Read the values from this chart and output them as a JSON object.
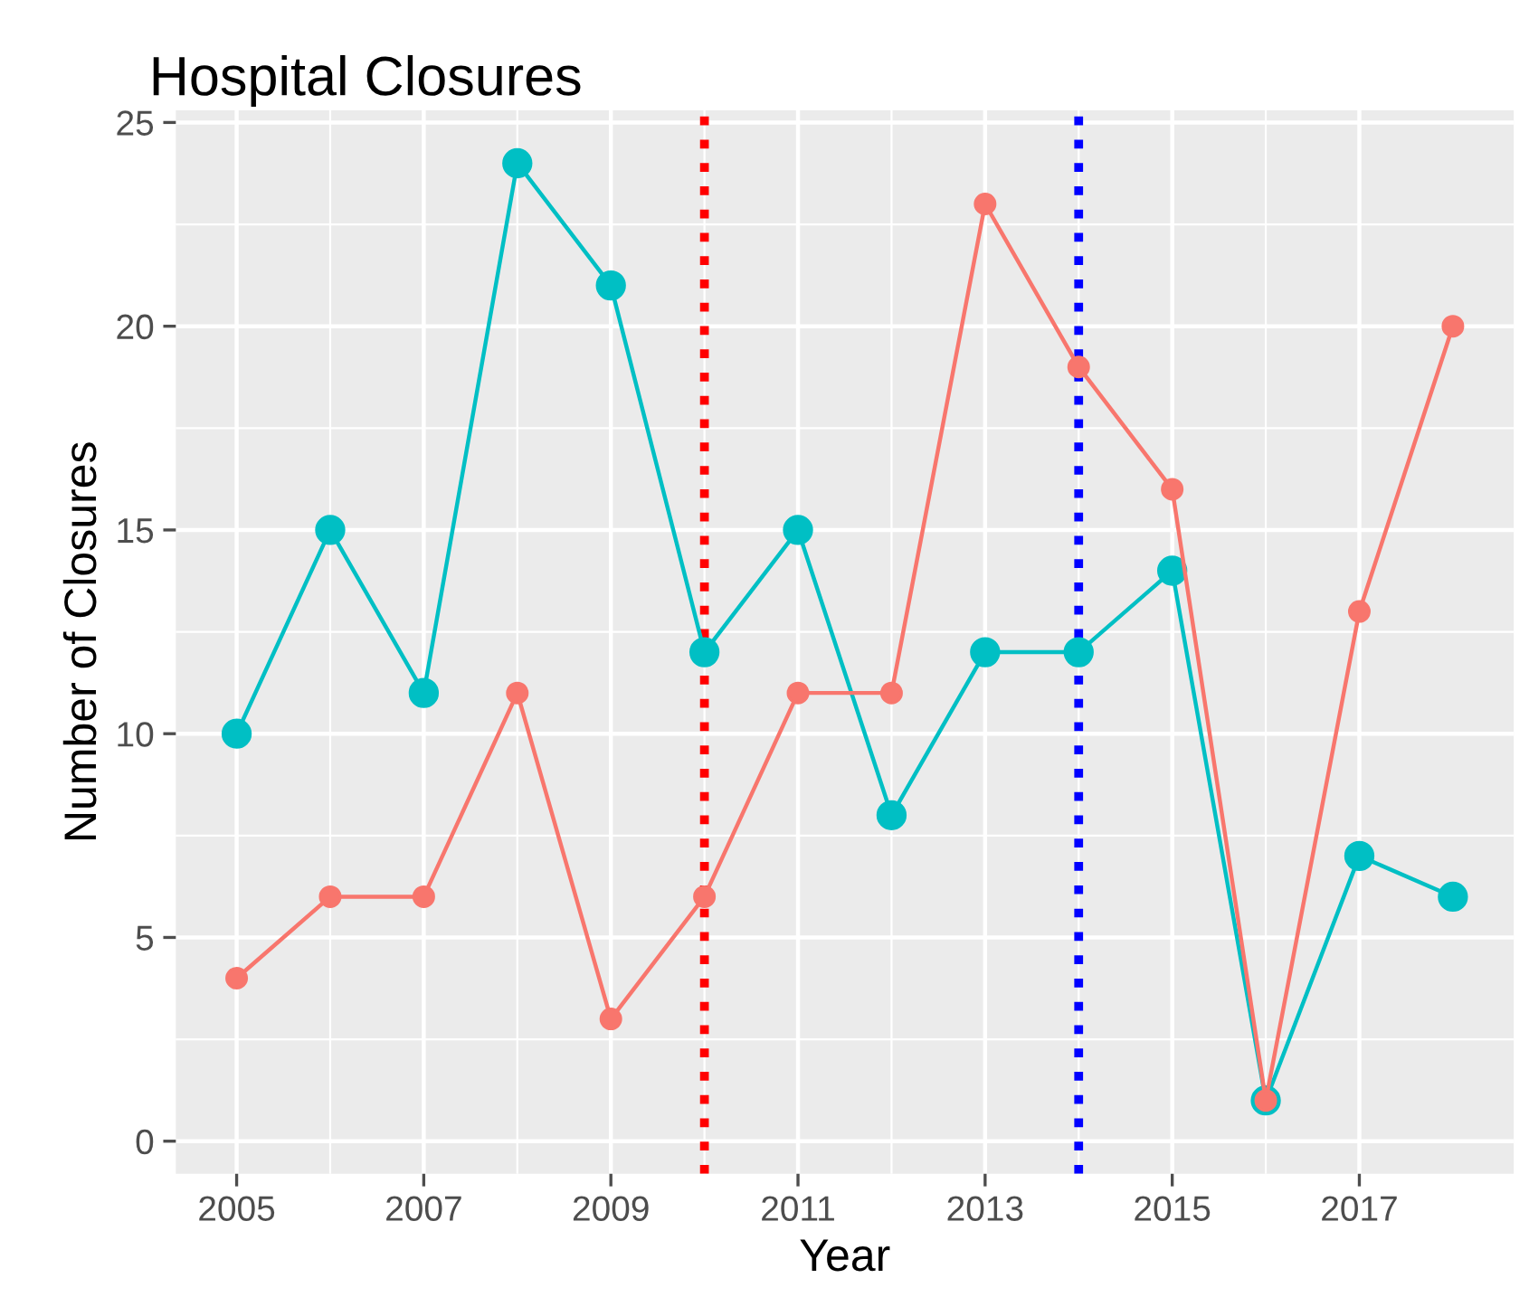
{
  "chart_data": {
    "type": "line",
    "title": "Hospital Closures",
    "xlabel": "Year",
    "ylabel": "Number of Closures",
    "x": [
      2005,
      2006,
      2007,
      2008,
      2009,
      2010,
      2011,
      2012,
      2013,
      2014,
      2015,
      2016,
      2017,
      2018
    ],
    "series": [
      {
        "color": "#00bfc4",
        "values": [
          10,
          15,
          11,
          24,
          21,
          12,
          15,
          8,
          12,
          12,
          14,
          1,
          7,
          6
        ]
      },
      {
        "color": "#f8766d",
        "values": [
          4,
          6,
          6,
          11,
          3,
          6,
          11,
          11,
          23,
          19,
          16,
          1,
          13,
          20
        ]
      }
    ],
    "xlim": [
      2004.35,
      2018.65
    ],
    "xticks": [
      2005,
      2007,
      2009,
      2011,
      2013,
      2015,
      2017
    ],
    "ylim": [
      -0.8,
      25.3
    ],
    "yticks": [
      0,
      5,
      10,
      15,
      20,
      25
    ],
    "ref_lines": [
      {
        "axis": "x",
        "value": 2010,
        "color": "#ff0000",
        "line_style": "dotted"
      },
      {
        "axis": "x",
        "value": 2014,
        "color": "#0000ff",
        "line_style": "dotted"
      }
    ],
    "grid": true,
    "marker": "circle",
    "line_style": "solid",
    "legend": false
  }
}
